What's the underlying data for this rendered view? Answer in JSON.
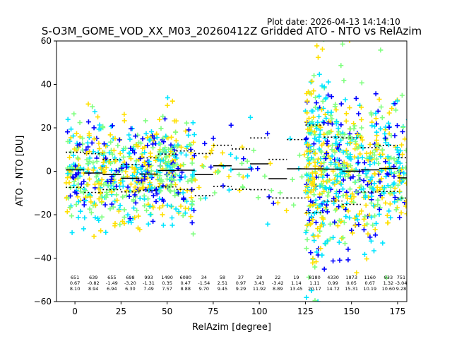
{
  "plot_date": "Plot date: 2026-04-13 14:14:10",
  "chart_data": {
    "type": "scatter",
    "title": "S-O3M_GOME_VOD_XX_M03_20260412Z Gridded ATO - NTO vs RelAzim",
    "xlabel": "RelAzim [degree]",
    "ylabel": "ATO - NTO [DU]",
    "xlim": [
      -10,
      180
    ],
    "ylim": [
      -60,
      60
    ],
    "xticks": [
      0,
      25,
      50,
      75,
      100,
      125,
      150,
      175
    ],
    "yticks": [
      -60,
      -40,
      -20,
      0,
      20,
      40,
      60
    ],
    "marker": "plus",
    "scatter_colors": [
      "#0000ff",
      "#00e5ff",
      "#00e5ff",
      "#7fff7f",
      "#7fff7f",
      "#ffe000",
      "#ffe000"
    ],
    "bin_width": 10,
    "bins": [
      {
        "x": 0,
        "count": "651",
        "mean": "0.67",
        "std": "8.10",
        "dmean": 0.67,
        "dstd": 8.1,
        "spread": 12,
        "density": 1.0
      },
      {
        "x": 10,
        "count": "639",
        "mean": "-0.82",
        "std": "8.94",
        "dmean": -0.82,
        "dstd": 8.94,
        "spread": 12,
        "density": 1.0
      },
      {
        "x": 20,
        "count": "655",
        "mean": "-1.49",
        "std": "6.94",
        "dmean": -1.49,
        "dstd": 6.94,
        "spread": 11,
        "density": 1.0
      },
      {
        "x": 30,
        "count": "698",
        "mean": "-3.20",
        "std": "6.30",
        "dmean": -3.2,
        "dstd": 6.3,
        "spread": 11,
        "density": 1.0
      },
      {
        "x": 40,
        "count": "993",
        "mean": "-1.31",
        "std": "7.49",
        "dmean": -1.31,
        "dstd": 7.49,
        "spread": 12,
        "density": 1.2
      },
      {
        "x": 50,
        "count": "1490",
        "mean": "0.35",
        "std": "7.57",
        "dmean": 0.35,
        "dstd": 7.57,
        "spread": 12,
        "density": 1.4
      },
      {
        "x": 60,
        "count": "6080",
        "mean": "0.47",
        "std": "8.88",
        "dmean": 0.47,
        "dstd": 8.88,
        "spread": 14,
        "density": 0.8
      },
      {
        "x": 70,
        "count": "34",
        "mean": "-1.54",
        "std": "9.70",
        "dmean": -1.54,
        "dstd": 9.7,
        "spread": 8,
        "density": 0.12
      },
      {
        "x": 80,
        "count": "58",
        "mean": "2.51",
        "std": "9.45",
        "dmean": 2.51,
        "dstd": 9.45,
        "spread": 10,
        "density": 0.18
      },
      {
        "x": 90,
        "count": "37",
        "mean": "0.97",
        "std": "9.29",
        "dmean": 0.97,
        "dstd": 9.29,
        "spread": 10,
        "density": 0.12
      },
      {
        "x": 100,
        "count": "28",
        "mean": "3.43",
        "std": "11.92",
        "dmean": 3.43,
        "dstd": 11.92,
        "spread": 10,
        "density": 0.1
      },
      {
        "x": 110,
        "count": "22",
        "mean": "-3.42",
        "std": "8.89",
        "dmean": -3.42,
        "dstd": 8.89,
        "spread": 10,
        "density": 0.08
      },
      {
        "x": 120,
        "count": "19",
        "mean": "1.14",
        "std": "13.45",
        "dmean": 1.14,
        "dstd": 13.45,
        "spread": 12,
        "density": 0.08
      },
      {
        "x": 130,
        "count": "8180",
        "mean": "1.11",
        "std": "20.17",
        "dmean": 1.11,
        "dstd": 20.17,
        "spread": 25,
        "density": 2.4
      },
      {
        "x": 140,
        "count": "4330",
        "mean": "0.99",
        "std": "14.72",
        "dmean": 0.99,
        "dstd": 14.72,
        "spread": 20,
        "density": 1.6
      },
      {
        "x": 150,
        "count": "1873",
        "mean": "0.05",
        "std": "15.31",
        "dmean": 0.05,
        "dstd": 15.31,
        "spread": 18,
        "density": 1.3
      },
      {
        "x": 160,
        "count": "1160",
        "mean": "0.67",
        "std": "10.19",
        "dmean": 0.67,
        "dstd": 10.19,
        "spread": 16,
        "density": 1.2
      },
      {
        "x": 170,
        "count": "933",
        "mean": "1.32",
        "std": "10.60",
        "dmean": 1.32,
        "dstd": 10.6,
        "spread": 16,
        "density": 1.1
      },
      {
        "x": 180,
        "count": "751",
        "mean": "-3.04",
        "std": "9.28",
        "dmean": -3.04,
        "dstd": 9.28,
        "spread": 14,
        "density": 1.0
      }
    ]
  }
}
